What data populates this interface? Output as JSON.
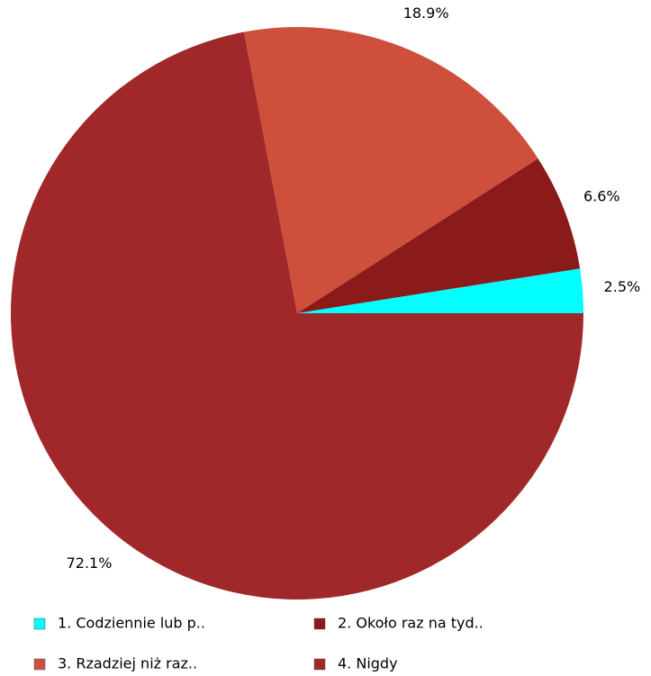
{
  "chart_data": {
    "type": "pie",
    "categories": [
      "1. Codziennie lub p..",
      "2. Około raz na tyd..",
      "3. Rzadziej niż raz..",
      "4. Nigdy"
    ],
    "values": [
      2.5,
      6.6,
      18.9,
      72.1
    ],
    "value_labels": [
      "2.5%",
      "6.6%",
      "18.9%",
      "72.1%"
    ],
    "colors": [
      "#00ffff",
      "#8b1a1a",
      "#cd4f3c",
      "#a0282a"
    ],
    "legend": "bottom"
  }
}
